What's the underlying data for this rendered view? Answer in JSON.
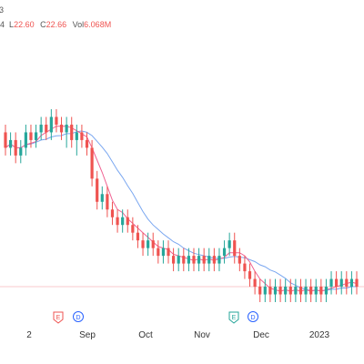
{
  "header": {
    "cut_prefix": "3",
    "ohlc": [
      {
        "key": "L",
        "value": "22.60"
      },
      {
        "key": "C",
        "value": "22.66"
      },
      {
        "key": "Vol",
        "value": "6.068M"
      }
    ],
    "lead_fragment": "4"
  },
  "colors": {
    "up": "#26a69a",
    "down": "#ef5350",
    "ma_fast": "#f06292",
    "ma_slow": "#7aa7f0",
    "price_line": "#f8c9cd",
    "axis_text": "#333333",
    "event_E": "#ef5350",
    "event_D": "#2962ff",
    "event_E_green": "#26a69a"
  },
  "chart_data": {
    "type": "candlestick",
    "x_labels": [
      "2",
      "Sep",
      "Oct",
      "Nov",
      "Dec",
      "2023"
    ],
    "events": [
      {
        "letter": "E",
        "style": "E_red"
      },
      {
        "letter": "D",
        "style": "D"
      },
      {
        "letter": "E",
        "style": "E_green"
      },
      {
        "letter": "D",
        "style": "D"
      }
    ],
    "ma_fast_points": [],
    "ma_slow_points": [],
    "candles": [
      {
        "o": 36,
        "c": 34,
        "h": 37,
        "l": 33
      },
      {
        "o": 34,
        "c": 35,
        "h": 36,
        "l": 33
      },
      {
        "o": 35,
        "c": 33,
        "h": 36,
        "l": 32
      },
      {
        "o": 33,
        "c": 34,
        "h": 35,
        "l": 32
      },
      {
        "o": 34,
        "c": 36,
        "h": 37,
        "l": 33
      },
      {
        "o": 36,
        "c": 35,
        "h": 37,
        "l": 34
      },
      {
        "o": 35,
        "c": 36,
        "h": 37,
        "l": 34
      },
      {
        "o": 36,
        "c": 37,
        "h": 38,
        "l": 35
      },
      {
        "o": 37,
        "c": 36,
        "h": 38,
        "l": 35
      },
      {
        "o": 36,
        "c": 38,
        "h": 39,
        "l": 35
      },
      {
        "o": 38,
        "c": 37,
        "h": 39,
        "l": 36
      },
      {
        "o": 37,
        "c": 36,
        "h": 38,
        "l": 35
      },
      {
        "o": 36,
        "c": 37,
        "h": 38,
        "l": 34
      },
      {
        "o": 37,
        "c": 35,
        "h": 38,
        "l": 34
      },
      {
        "o": 35,
        "c": 36,
        "h": 37,
        "l": 33
      },
      {
        "o": 36,
        "c": 35,
        "h": 37,
        "l": 34
      },
      {
        "o": 35,
        "c": 34,
        "h": 36,
        "l": 33
      },
      {
        "o": 34,
        "c": 30,
        "h": 35,
        "l": 29
      },
      {
        "o": 30,
        "c": 27,
        "h": 31,
        "l": 26
      },
      {
        "o": 27,
        "c": 28,
        "h": 29,
        "l": 26
      },
      {
        "o": 28,
        "c": 26,
        "h": 29,
        "l": 25
      },
      {
        "o": 26,
        "c": 25,
        "h": 27,
        "l": 24
      },
      {
        "o": 25,
        "c": 24,
        "h": 26,
        "l": 23
      },
      {
        "o": 24,
        "c": 25,
        "h": 26,
        "l": 23
      },
      {
        "o": 25,
        "c": 24,
        "h": 26,
        "l": 23
      },
      {
        "o": 24,
        "c": 23,
        "h": 25,
        "l": 22
      },
      {
        "o": 23,
        "c": 22,
        "h": 24,
        "l": 21
      },
      {
        "o": 22,
        "c": 21,
        "h": 23,
        "l": 20
      },
      {
        "o": 21,
        "c": 22,
        "h": 23,
        "l": 20
      },
      {
        "o": 22,
        "c": 21,
        "h": 23,
        "l": 20
      },
      {
        "o": 21,
        "c": 20,
        "h": 22,
        "l": 19
      },
      {
        "o": 20,
        "c": 21,
        "h": 22,
        "l": 19
      },
      {
        "o": 21,
        "c": 20,
        "h": 22,
        "l": 19
      },
      {
        "o": 20,
        "c": 19,
        "h": 21,
        "l": 18
      },
      {
        "o": 19,
        "c": 20,
        "h": 21,
        "l": 18
      },
      {
        "o": 20,
        "c": 19,
        "h": 21,
        "l": 18
      },
      {
        "o": 19,
        "c": 20,
        "h": 21,
        "l": 18
      },
      {
        "o": 20,
        "c": 19,
        "h": 21,
        "l": 18
      },
      {
        "o": 19,
        "c": 20,
        "h": 21,
        "l": 18
      },
      {
        "o": 20,
        "c": 19,
        "h": 21,
        "l": 18
      },
      {
        "o": 19,
        "c": 20,
        "h": 21,
        "l": 18
      },
      {
        "o": 20,
        "c": 19,
        "h": 21,
        "l": 18
      },
      {
        "o": 19,
        "c": 20,
        "h": 21,
        "l": 18
      },
      {
        "o": 20,
        "c": 21,
        "h": 22,
        "l": 19
      },
      {
        "o": 21,
        "c": 22,
        "h": 23,
        "l": 20
      },
      {
        "o": 22,
        "c": 20,
        "h": 23,
        "l": 19
      },
      {
        "o": 20,
        "c": 19,
        "h": 21,
        "l": 18
      },
      {
        "o": 19,
        "c": 18,
        "h": 20,
        "l": 17
      },
      {
        "o": 18,
        "c": 17,
        "h": 19,
        "l": 16
      },
      {
        "o": 17,
        "c": 16,
        "h": 18,
        "l": 15
      },
      {
        "o": 16,
        "c": 15,
        "h": 17,
        "l": 14
      },
      {
        "o": 15,
        "c": 16,
        "h": 17,
        "l": 14
      },
      {
        "o": 16,
        "c": 15,
        "h": 17,
        "l": 14
      },
      {
        "o": 15,
        "c": 16,
        "h": 17,
        "l": 14
      },
      {
        "o": 16,
        "c": 15,
        "h": 17,
        "l": 14
      },
      {
        "o": 15,
        "c": 16,
        "h": 17,
        "l": 14
      },
      {
        "o": 16,
        "c": 15,
        "h": 17,
        "l": 14
      },
      {
        "o": 15,
        "c": 16,
        "h": 17,
        "l": 14
      },
      {
        "o": 16,
        "c": 15,
        "h": 17,
        "l": 14
      },
      {
        "o": 15,
        "c": 16,
        "h": 17,
        "l": 14
      },
      {
        "o": 16,
        "c": 15,
        "h": 17,
        "l": 14
      },
      {
        "o": 15,
        "c": 16,
        "h": 17,
        "l": 14
      },
      {
        "o": 16,
        "c": 15,
        "h": 17,
        "l": 14
      },
      {
        "o": 15,
        "c": 16,
        "h": 17,
        "l": 14
      },
      {
        "o": 16,
        "c": 17,
        "h": 18,
        "l": 15
      },
      {
        "o": 17,
        "c": 16,
        "h": 18,
        "l": 15
      },
      {
        "o": 16,
        "c": 17,
        "h": 18,
        "l": 15
      },
      {
        "o": 17,
        "c": 16,
        "h": 18,
        "l": 15
      },
      {
        "o": 16,
        "c": 17,
        "h": 18,
        "l": 15
      },
      {
        "o": 17,
        "c": 16,
        "h": 18,
        "l": 15
      }
    ]
  }
}
